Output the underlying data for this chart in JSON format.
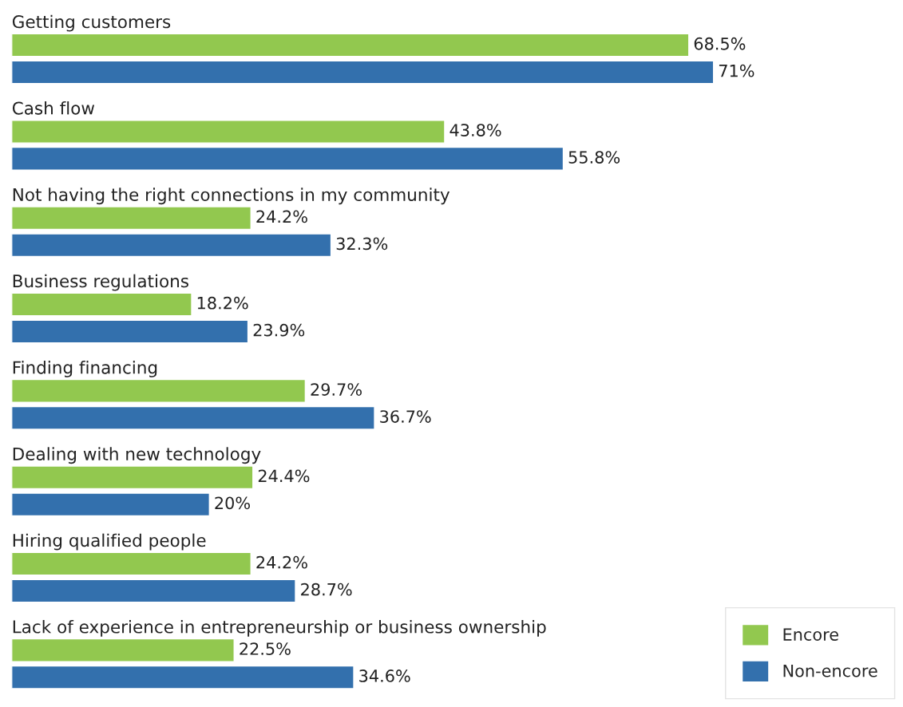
{
  "chart_data": {
    "type": "bar",
    "orientation": "horizontal",
    "categories": [
      "Getting customers",
      "Cash flow",
      "Not having the right connections in my community",
      "Business regulations",
      "Finding financing",
      "Dealing with new technology",
      "Hiring qualified people",
      "Lack of experience in entrepreneurship or business ownership"
    ],
    "series": [
      {
        "name": "Encore",
        "color": "#92c84f",
        "values": [
          68.5,
          43.8,
          24.2,
          18.2,
          29.7,
          24.4,
          24.2,
          22.5
        ],
        "value_labels": [
          "68.5%",
          "43.8%",
          "24.2%",
          "18.2%",
          "29.7%",
          "24.4%",
          "24.2%",
          "22.5%"
        ]
      },
      {
        "name": "Non-encore",
        "color": "#3370ad",
        "values": [
          71,
          55.8,
          32.3,
          23.9,
          36.7,
          20,
          28.7,
          34.6
        ],
        "value_labels": [
          "71%",
          "55.8%",
          "32.3%",
          "23.9%",
          "36.7%",
          "20%",
          "28.7%",
          "34.6%"
        ]
      }
    ],
    "legend": "bottom right"
  }
}
